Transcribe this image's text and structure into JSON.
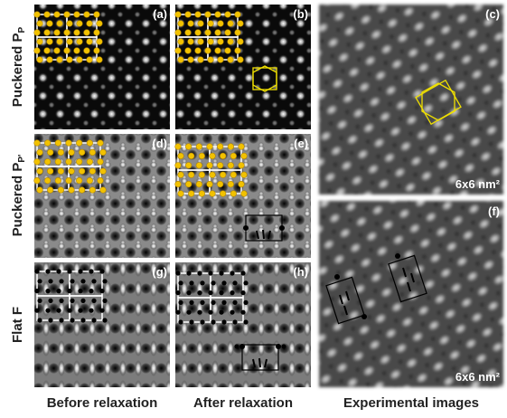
{
  "row_labels": [
    {
      "text": "Puckered P",
      "sub": "P"
    },
    {
      "text": "Puckered P",
      "sub": "P'"
    },
    {
      "text": "Flat F"
    }
  ],
  "panel_labels": [
    "(a)",
    "(b)",
    "(c)",
    "(d)",
    "(e)",
    "(f)",
    "(g)",
    "(h)"
  ],
  "scale_labels": [
    "6x6 nm²",
    "6x6 nm²"
  ],
  "column_labels": [
    "Before relaxation",
    "After relaxation",
    "Experimental images"
  ]
}
